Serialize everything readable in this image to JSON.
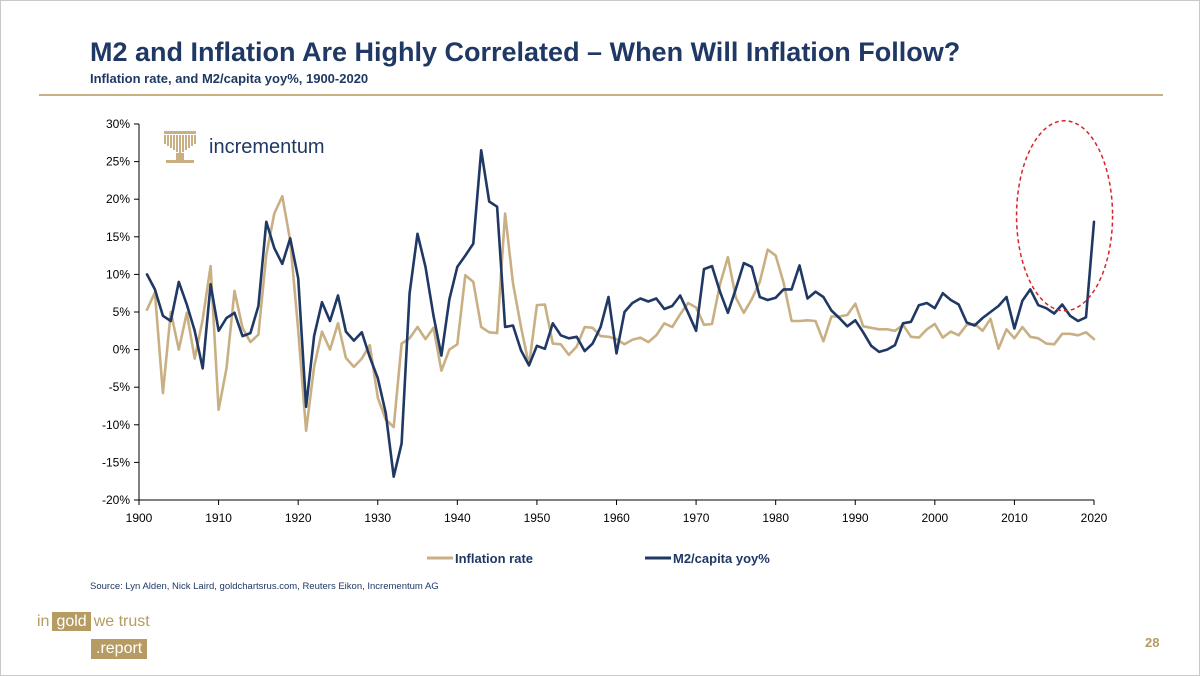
{
  "header": {
    "title": "M2 and Inflation Are Highly Correlated – When Will Inflation Follow?",
    "subtitle": "Inflation rate, and M2/capita yoy%, 1900-2020"
  },
  "brand": {
    "name": "incrementum"
  },
  "footer": {
    "source": "Source: Lyn Alden, Nick Laird, goldchartsrus.com, Reuters Eikon, Incrementum AG",
    "page_number": "28",
    "report_logo": {
      "word1": "in",
      "word2": "gold",
      "word3": "we trust",
      "word4": ".report"
    }
  },
  "colors": {
    "inflation": "#c9b084",
    "m2": "#1f3864",
    "highlight": "#d9242b",
    "axis": "#000000"
  },
  "chart_data": {
    "type": "line",
    "title": "",
    "xlabel": "",
    "ylabel": "",
    "xlim": [
      1900,
      2020
    ],
    "ylim": [
      -20,
      30
    ],
    "x_ticks": [
      1900,
      1910,
      1920,
      1930,
      1940,
      1950,
      1960,
      1970,
      1980,
      1990,
      2000,
      2010,
      2020
    ],
    "y_ticks": [
      {
        "value": 30,
        "label": "30%"
      },
      {
        "value": 25,
        "label": "25%"
      },
      {
        "value": 20,
        "label": "20%"
      },
      {
        "value": 15,
        "label": "15%"
      },
      {
        "value": 10,
        "label": "10%"
      },
      {
        "value": 5,
        "label": "5%"
      },
      {
        "value": 0,
        "label": "0%"
      },
      {
        "value": -5,
        "label": "-5%"
      },
      {
        "value": -10,
        "label": "-10%"
      },
      {
        "value": -15,
        "label": "-15%"
      },
      {
        "value": -20,
        "label": "-20%"
      }
    ],
    "x": [
      1901,
      1902,
      1903,
      1904,
      1905,
      1906,
      1907,
      1908,
      1909,
      1910,
      1911,
      1912,
      1913,
      1914,
      1915,
      1916,
      1917,
      1918,
      1919,
      1920,
      1921,
      1922,
      1923,
      1924,
      1925,
      1926,
      1927,
      1928,
      1929,
      1930,
      1931,
      1932,
      1933,
      1934,
      1935,
      1936,
      1937,
      1938,
      1939,
      1940,
      1941,
      1942,
      1943,
      1944,
      1945,
      1946,
      1947,
      1948,
      1949,
      1950,
      1951,
      1952,
      1953,
      1954,
      1955,
      1956,
      1957,
      1958,
      1959,
      1960,
      1961,
      1962,
      1963,
      1964,
      1965,
      1966,
      1967,
      1968,
      1969,
      1970,
      1971,
      1972,
      1973,
      1974,
      1975,
      1976,
      1977,
      1978,
      1979,
      1980,
      1981,
      1982,
      1983,
      1984,
      1985,
      1986,
      1987,
      1988,
      1989,
      1990,
      1991,
      1992,
      1993,
      1994,
      1995,
      1996,
      1997,
      1998,
      1999,
      2000,
      2001,
      2002,
      2003,
      2004,
      2005,
      2006,
      2007,
      2008,
      2009,
      2010,
      2011,
      2012,
      2013,
      2014,
      2015,
      2016,
      2017,
      2018,
      2019,
      2020
    ],
    "series": [
      {
        "name": "Inflation rate",
        "values": [
          5.3,
          7.6,
          -5.8,
          5.0,
          0.0,
          4.9,
          -1.2,
          4.0,
          11.1,
          -8.0,
          -2.5,
          7.8,
          2.9,
          1.0,
          2.0,
          12.6,
          18.1,
          20.4,
          14.5,
          2.6,
          -10.8,
          -2.3,
          2.4,
          0.0,
          3.5,
          -1.1,
          -2.3,
          -1.2,
          0.6,
          -6.4,
          -9.3,
          -10.3,
          0.8,
          1.5,
          3.0,
          1.4,
          2.9,
          -2.8,
          0.0,
          0.7,
          9.9,
          9.0,
          3.0,
          2.3,
          2.2,
          18.1,
          8.8,
          3.0,
          -2.1,
          5.9,
          6.0,
          0.8,
          0.7,
          -0.7,
          0.4,
          3.0,
          2.9,
          1.8,
          1.7,
          1.4,
          0.7,
          1.3,
          1.6,
          1.0,
          1.9,
          3.5,
          3.0,
          4.7,
          6.2,
          5.6,
          3.3,
          3.4,
          8.7,
          12.3,
          6.9,
          4.9,
          6.7,
          9.0,
          13.3,
          12.5,
          8.9,
          3.8,
          3.8,
          3.9,
          3.8,
          1.1,
          4.4,
          4.4,
          4.6,
          6.1,
          3.1,
          2.9,
          2.7,
          2.7,
          2.5,
          3.3,
          1.7,
          1.6,
          2.7,
          3.4,
          1.6,
          2.4,
          1.9,
          3.3,
          3.4,
          2.5,
          4.1,
          0.1,
          2.7,
          1.5,
          3.0,
          1.7,
          1.5,
          0.8,
          0.7,
          2.1,
          2.1,
          1.9,
          2.3,
          1.4
        ],
        "color": "#c9b084"
      },
      {
        "name": "M2/capita yoy%",
        "values": [
          10.0,
          8.0,
          4.5,
          3.8,
          9.0,
          6.0,
          2.5,
          -2.5,
          8.7,
          2.5,
          4.2,
          4.9,
          1.8,
          2.2,
          5.8,
          17.0,
          13.5,
          11.4,
          14.8,
          9.5,
          -7.6,
          1.8,
          6.3,
          3.8,
          7.2,
          2.4,
          1.2,
          2.3,
          -1.0,
          -3.8,
          -8.4,
          -16.9,
          -12.5,
          7.5,
          15.4,
          11.0,
          4.5,
          -0.8,
          6.7,
          11.0,
          12.5,
          14.1,
          26.5,
          19.7,
          19.0,
          3.0,
          3.2,
          -0.1,
          -2.1,
          0.5,
          0.1,
          3.5,
          1.9,
          1.5,
          1.7,
          -0.2,
          0.8,
          3.0,
          7.0,
          -0.5,
          5.0,
          6.2,
          6.8,
          6.4,
          6.8,
          5.4,
          5.8,
          7.2,
          4.9,
          2.5,
          10.7,
          11.1,
          7.7,
          4.9,
          8.1,
          11.5,
          11.0,
          7.0,
          6.6,
          6.9,
          8.0,
          8.0,
          11.2,
          6.8,
          7.7,
          7.0,
          5.2,
          4.2,
          3.1,
          3.9,
          2.3,
          0.5,
          -0.3,
          0.0,
          0.6,
          3.5,
          3.7,
          5.9,
          6.2,
          5.5,
          7.5,
          6.6,
          6.0,
          3.6,
          3.2,
          4.2,
          5.0,
          5.8,
          7.0,
          2.8,
          6.5,
          8.0,
          5.9,
          5.5,
          4.8,
          6.0,
          4.5,
          3.8,
          4.3,
          17.0
        ],
        "color": "#1f3864"
      }
    ],
    "legend": {
      "placement": "bottom-center",
      "entries": [
        "Inflation rate",
        "M2/capita yoy%"
      ]
    },
    "annotations": [
      {
        "type": "dashed-ellipse",
        "around": "2011-2020 M2 spike",
        "color": "#d9242b"
      }
    ],
    "grid": false
  }
}
